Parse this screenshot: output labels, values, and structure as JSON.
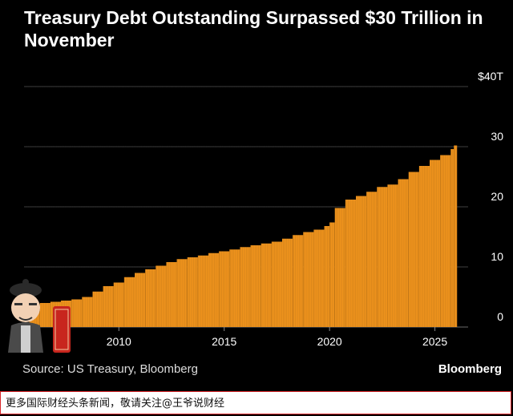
{
  "title": "Treasury Debt Outstanding Surpassed $30 Trillion in November",
  "source": "Source: US Treasury, Bloomberg",
  "brand": "Bloomberg",
  "footer_text": "更多国际财经头条新闻，敬请关注@王爷说财经",
  "colors": {
    "bar": "#f0941d",
    "grid": "#555555",
    "axis_text": "#ffffff"
  },
  "chart_data": {
    "type": "bar",
    "title": "Treasury Debt Outstanding Surpassed $30 Trillion in November",
    "xlabel": "",
    "ylabel": "",
    "ylim": [
      0,
      40
    ],
    "y_ticks": [
      {
        "value": 0,
        "label": "0"
      },
      {
        "value": 10,
        "label": "10"
      },
      {
        "value": 20,
        "label": "20"
      },
      {
        "value": 30,
        "label": "30"
      },
      {
        "value": 40,
        "label": "$40T"
      }
    ],
    "x_ticks": [
      {
        "value": 2010,
        "label": "2010"
      },
      {
        "value": 2015,
        "label": "2015"
      },
      {
        "value": 2020,
        "label": "2020"
      },
      {
        "value": 2025,
        "label": "2025"
      }
    ],
    "xlim": [
      2005.5,
      2026.5
    ],
    "grid": true,
    "x": [
      2005.75,
      2006.25,
      2006.75,
      2007.25,
      2007.75,
      2008.25,
      2008.75,
      2009.25,
      2009.75,
      2010.25,
      2010.75,
      2011.25,
      2011.75,
      2012.25,
      2012.75,
      2013.25,
      2013.75,
      2014.25,
      2014.75,
      2015.25,
      2015.75,
      2016.25,
      2016.75,
      2017.25,
      2017.75,
      2018.25,
      2018.75,
      2019.25,
      2019.75,
      2020.0,
      2020.25,
      2020.75,
      2021.25,
      2021.75,
      2022.25,
      2022.75,
      2023.25,
      2023.75,
      2024.25,
      2024.75,
      2025.25,
      2025.75,
      2025.9
    ],
    "values": [
      3.8,
      4.0,
      4.2,
      4.4,
      4.6,
      5.0,
      5.9,
      6.8,
      7.4,
      8.3,
      9.0,
      9.6,
      10.2,
      10.8,
      11.3,
      11.6,
      11.9,
      12.3,
      12.6,
      12.9,
      13.3,
      13.6,
      13.9,
      14.2,
      14.7,
      15.3,
      15.8,
      16.2,
      16.8,
      17.4,
      19.8,
      21.2,
      21.8,
      22.5,
      23.3,
      23.7,
      24.6,
      25.8,
      26.8,
      27.8,
      28.6,
      29.6,
      30.2
    ],
    "series": [
      {
        "values": "see values"
      }
    ]
  }
}
